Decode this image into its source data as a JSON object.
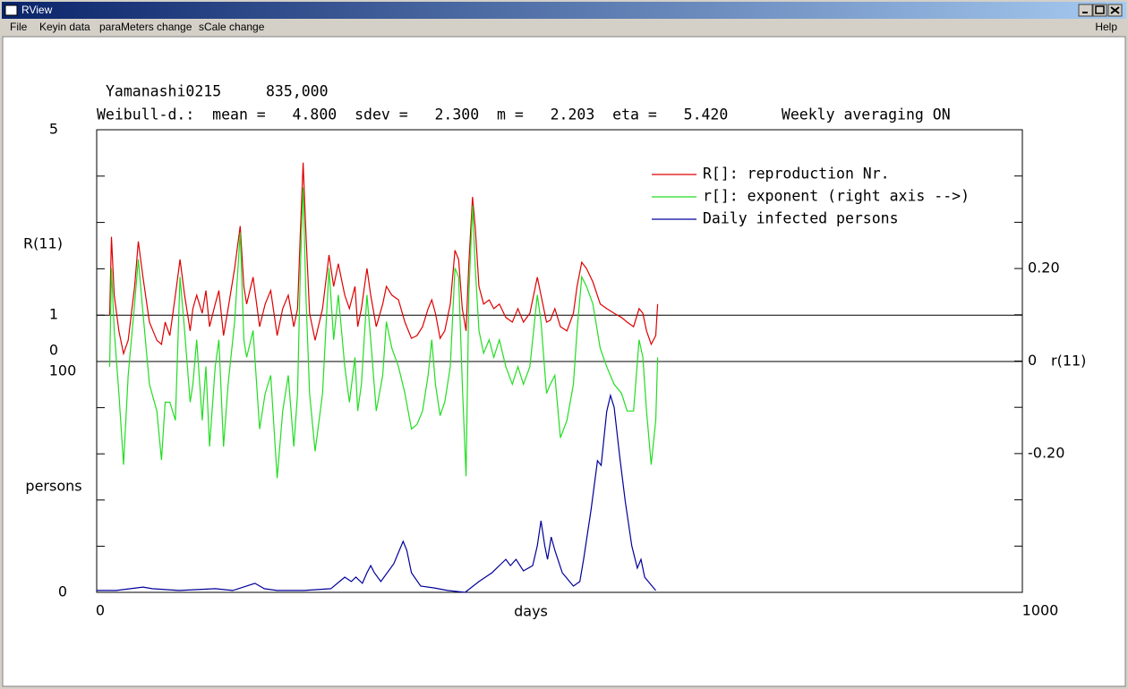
{
  "window": {
    "title": "RView",
    "menu": [
      "File",
      "Keyin data",
      "paraMeters change",
      "sCale change"
    ],
    "help": "Help"
  },
  "chart_data": {
    "type": "line",
    "title": "Yamanashi0215",
    "population": "835,000",
    "subtitle": "Weibull-d.:  mean =   4.800  sdev =   2.300  m =   2.203  eta =   5.420      Weekly averaging ON",
    "xlabel": "days",
    "ylabel": "R(11)",
    "y2label": "r(11)",
    "y3label": "persons",
    "xlim": [
      0,
      1000
    ],
    "xticks": [
      0,
      1000
    ],
    "ylim": [
      0,
      5
    ],
    "yticks": [
      0,
      1,
      5
    ],
    "ytick_marks": [
      1,
      2,
      3,
      4
    ],
    "y2lim": [
      -0.5,
      0.5
    ],
    "y2ticks": [
      {
        "value": -0.2,
        "label": "-0.20"
      },
      0,
      {
        "value": 0.2,
        "label": "0.20"
      }
    ],
    "y2tick_marks": [
      -0.4,
      -0.3,
      -0.2,
      -0.1,
      0,
      0.1,
      0.2,
      0.3,
      0.4
    ],
    "y3lim": [
      0,
      100
    ],
    "y3ticks": [
      0,
      100
    ],
    "y3tick_marks": [
      20,
      40,
      60,
      80
    ],
    "reference_lines": [
      1,
      0
    ],
    "series": [
      {
        "name": "R[]: reproduction Nr.",
        "color": "#dd0000",
        "axis": "y",
        "x": [
          14,
          16,
          19,
          24,
          29,
          34,
          41,
          45,
          50,
          57,
          65,
          70,
          74,
          79,
          85,
          90,
          95,
          101,
          104,
          108,
          114,
          118,
          122,
          128,
          132,
          137,
          142,
          149,
          155,
          159,
          162,
          169,
          176,
          182,
          188,
          195,
          201,
          207,
          213,
          217,
          220,
          223,
          226,
          230,
          236,
          244,
          251,
          256,
          261,
          268,
          273,
          279,
          282,
          286,
          292,
          296,
          302,
          309,
          313,
          319,
          326,
          333,
          340,
          346,
          352,
          358,
          362,
          366,
          371,
          376,
          382,
          387,
          391,
          395,
          399,
          402,
          406,
          409,
          413,
          418,
          424,
          429,
          435,
          442,
          449,
          455,
          461,
          468,
          476,
          480,
          486,
          490,
          495,
          501,
          508,
          515,
          519,
          524,
          529,
          536,
          544,
          551,
          559,
          567,
          573,
          580,
          586,
          590,
          594,
          599,
          604,
          606
        ],
        "values": [
          1.0,
          2.69,
          1.43,
          0.66,
          0.17,
          0.46,
          1.62,
          2.59,
          1.82,
          0.85,
          0.46,
          0.37,
          0.85,
          0.56,
          1.43,
          2.2,
          1.43,
          0.66,
          1.14,
          1.43,
          1.04,
          1.53,
          0.75,
          1.24,
          1.53,
          0.56,
          1.14,
          2.01,
          2.92,
          1.62,
          1.24,
          1.82,
          0.75,
          1.24,
          1.53,
          0.56,
          1.14,
          1.43,
          0.75,
          1.14,
          2.78,
          4.29,
          2.78,
          1.04,
          0.46,
          1.14,
          2.3,
          1.62,
          2.11,
          1.43,
          1.14,
          1.62,
          0.75,
          1.14,
          2.01,
          1.43,
          0.75,
          1.24,
          1.62,
          1.43,
          1.33,
          0.85,
          0.5,
          0.56,
          0.75,
          1.14,
          1.33,
          1.04,
          0.5,
          0.66,
          1.24,
          2.4,
          2.2,
          1.14,
          0.66,
          2.11,
          3.55,
          2.88,
          1.62,
          1.24,
          1.33,
          1.14,
          1.24,
          0.95,
          0.85,
          1.14,
          0.85,
          1.04,
          1.82,
          1.43,
          0.85,
          0.89,
          1.14,
          0.75,
          0.66,
          1.04,
          1.62,
          2.14,
          2.01,
          1.72,
          1.24,
          1.14,
          1.04,
          0.95,
          0.85,
          0.75,
          1.14,
          1.04,
          0.66,
          0.37,
          0.56,
          1.24
        ]
      },
      {
        "name": "r[]: exponent (right axis -->)",
        "color": "#22dd22",
        "axis": "y2",
        "x": [
          14,
          16,
          19,
          24,
          29,
          34,
          41,
          45,
          50,
          57,
          65,
          70,
          74,
          79,
          85,
          90,
          95,
          101,
          104,
          108,
          114,
          118,
          122,
          128,
          132,
          137,
          142,
          149,
          155,
          159,
          162,
          169,
          176,
          182,
          188,
          195,
          201,
          207,
          213,
          217,
          220,
          223,
          226,
          230,
          236,
          244,
          251,
          256,
          261,
          268,
          273,
          279,
          282,
          286,
          292,
          296,
          302,
          309,
          313,
          319,
          326,
          333,
          340,
          346,
          352,
          358,
          362,
          366,
          371,
          376,
          382,
          387,
          391,
          395,
          399,
          402,
          406,
          409,
          413,
          418,
          424,
          429,
          435,
          442,
          449,
          455,
          461,
          468,
          476,
          480,
          486,
          490,
          495,
          501,
          508,
          515,
          519,
          524,
          529,
          536,
          544,
          551,
          559,
          567,
          573,
          580,
          586,
          590,
          594,
          599,
          604,
          606
        ],
        "values": [
          -0.012,
          0.201,
          0.066,
          -0.07,
          -0.224,
          -0.031,
          0.124,
          0.22,
          0.104,
          -0.05,
          -0.108,
          -0.214,
          -0.089,
          -0.089,
          -0.128,
          0.182,
          0.066,
          -0.089,
          -0.05,
          0.046,
          -0.128,
          -0.012,
          -0.185,
          -0.012,
          0.046,
          -0.185,
          -0.05,
          0.085,
          0.278,
          0.046,
          0.008,
          0.066,
          -0.147,
          -0.07,
          -0.031,
          -0.253,
          -0.108,
          -0.031,
          -0.185,
          -0.07,
          0.201,
          0.375,
          0.143,
          -0.07,
          -0.195,
          -0.07,
          0.201,
          0.046,
          0.143,
          -0.012,
          -0.089,
          0.008,
          -0.108,
          -0.05,
          0.143,
          0.046,
          -0.108,
          -0.031,
          0.085,
          0.027,
          -0.012,
          -0.07,
          -0.147,
          -0.137,
          -0.108,
          -0.031,
          0.046,
          -0.05,
          -0.118,
          -0.089,
          -0.012,
          0.201,
          0.182,
          -0.05,
          -0.249,
          0.143,
          0.336,
          0.201,
          0.066,
          0.017,
          0.046,
          0.008,
          0.046,
          -0.012,
          -0.05,
          -0.012,
          -0.05,
          -0.012,
          0.143,
          0.085,
          -0.07,
          -0.05,
          -0.031,
          -0.166,
          -0.128,
          -0.05,
          0.066,
          0.182,
          0.162,
          0.124,
          0.027,
          -0.012,
          -0.05,
          -0.07,
          -0.108,
          -0.108,
          0.046,
          0.008,
          -0.108,
          -0.224,
          -0.128,
          0.008
        ]
      },
      {
        "name": "Daily infected persons",
        "color": "#000099",
        "axis": "y3",
        "x": [
          0,
          21,
          50,
          60,
          89,
          128,
          147,
          171,
          181,
          195,
          224,
          253,
          268,
          275,
          280,
          287,
          292,
          296,
          300,
          307,
          321,
          327,
          331,
          335,
          340,
          350,
          365,
          379,
          398,
          413,
          427,
          437,
          442,
          447,
          453,
          461,
          471,
          476,
          480,
          484,
          487,
          491,
          495,
          503,
          515,
          522,
          526,
          534,
          541,
          545,
          551,
          555,
          559,
          565,
          571,
          578,
          584,
          588,
          592,
          600,
          604
        ],
        "values": [
          0.8,
          0.8,
          2.3,
          1.6,
          0.8,
          1.6,
          0.8,
          3.9,
          1.6,
          0.8,
          0.8,
          1.6,
          6.6,
          4.7,
          6.6,
          3.9,
          8.5,
          11.6,
          8.5,
          4.7,
          12.4,
          18.2,
          22.1,
          18.2,
          8.5,
          2.7,
          1.9,
          0.8,
          0,
          4.7,
          8.5,
          12.4,
          14.3,
          11.6,
          14.3,
          9.3,
          11.6,
          20.2,
          31.0,
          20.2,
          14.3,
          24.0,
          18.2,
          8.5,
          2.7,
          4.7,
          14.3,
          35.7,
          57.0,
          55.0,
          78.3,
          85.3,
          80.2,
          58.9,
          39.5,
          20.2,
          10.5,
          14.3,
          6.6,
          2.7,
          0.8
        ]
      }
    ]
  }
}
